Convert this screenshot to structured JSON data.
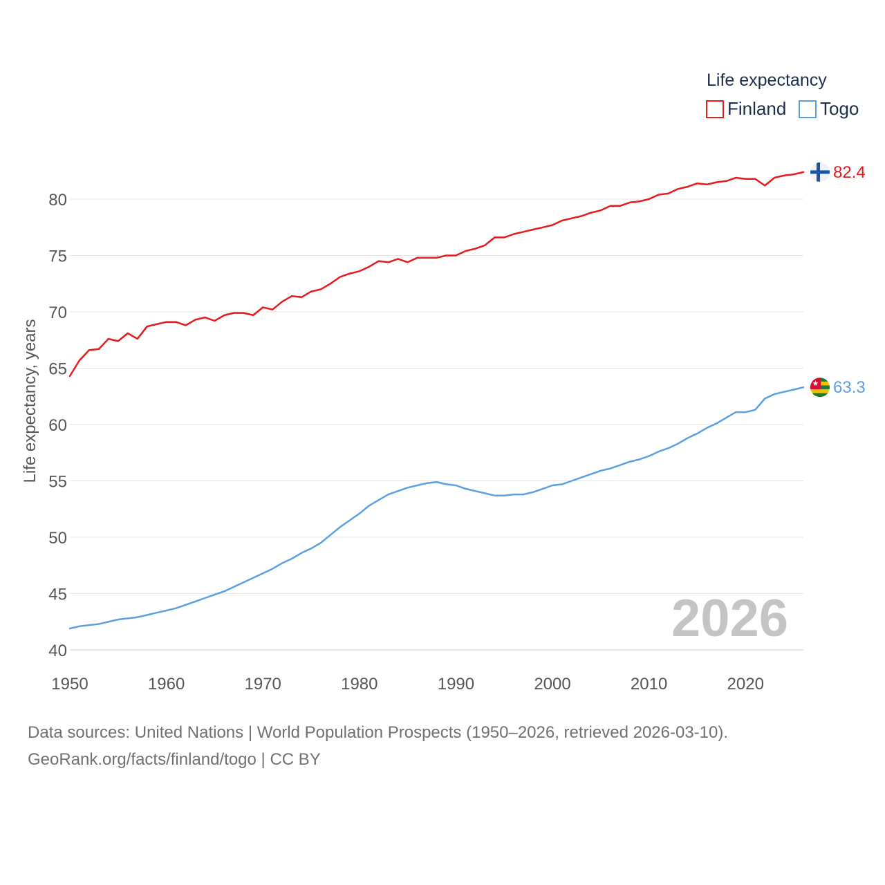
{
  "chart_data": {
    "type": "line",
    "title": "",
    "ylabel": "Life expectancy, years",
    "xlabel": "",
    "xlim": [
      1950,
      2026
    ],
    "ylim": [
      40,
      82.4
    ],
    "xticks": [
      1950,
      1960,
      1970,
      1980,
      1990,
      2000,
      2010,
      2020
    ],
    "xtick_labels": [
      "1950",
      "1960",
      "1970",
      "1980",
      "1990",
      "2000",
      "2010",
      "2020"
    ],
    "yticks": [
      40,
      45,
      50,
      55,
      60,
      65,
      70,
      75,
      80
    ],
    "ytick_labels": [
      "40",
      "45",
      "50",
      "55",
      "60",
      "65",
      "70",
      "75",
      "80"
    ],
    "grid": true,
    "legend": {
      "title": "Life expectancy",
      "position": "top-right",
      "entries": [
        "Finland",
        "Togo"
      ]
    },
    "current_year": "2026",
    "x": [
      1950,
      1951,
      1952,
      1953,
      1954,
      1955,
      1956,
      1957,
      1958,
      1959,
      1960,
      1961,
      1962,
      1963,
      1964,
      1965,
      1966,
      1967,
      1968,
      1969,
      1970,
      1971,
      1972,
      1973,
      1974,
      1975,
      1976,
      1977,
      1978,
      1979,
      1980,
      1981,
      1982,
      1983,
      1984,
      1985,
      1986,
      1987,
      1988,
      1989,
      1990,
      1991,
      1992,
      1993,
      1994,
      1995,
      1996,
      1997,
      1998,
      1999,
      2000,
      2001,
      2002,
      2003,
      2004,
      2005,
      2006,
      2007,
      2008,
      2009,
      2010,
      2011,
      2012,
      2013,
      2014,
      2015,
      2016,
      2017,
      2018,
      2019,
      2020,
      2021,
      2022,
      2023,
      2024,
      2025,
      2026
    ],
    "series": [
      {
        "name": "Finland",
        "color": "#e8191b",
        "end_label": "82.4",
        "flag": "finland-flag",
        "values": [
          64.3,
          65.7,
          66.6,
          66.7,
          67.6,
          67.4,
          68.1,
          67.6,
          68.7,
          68.9,
          69.1,
          69.1,
          68.8,
          69.3,
          69.5,
          69.2,
          69.7,
          69.9,
          69.9,
          69.7,
          70.4,
          70.2,
          70.9,
          71.4,
          71.3,
          71.8,
          72.0,
          72.5,
          73.1,
          73.4,
          73.6,
          74.0,
          74.5,
          74.4,
          74.7,
          74.4,
          74.8,
          74.8,
          74.8,
          75.0,
          75.0,
          75.4,
          75.6,
          75.9,
          76.6,
          76.6,
          76.9,
          77.1,
          77.3,
          77.5,
          77.7,
          78.1,
          78.3,
          78.5,
          78.8,
          79.0,
          79.4,
          79.4,
          79.7,
          79.8,
          80.0,
          80.4,
          80.5,
          80.9,
          81.1,
          81.4,
          81.3,
          81.5,
          81.6,
          81.9,
          81.8,
          81.8,
          81.2,
          81.9,
          82.1,
          82.2,
          82.4
        ]
      },
      {
        "name": "Togo",
        "color": "#5aa0e0",
        "end_label": "63.3",
        "flag": "togo-flag",
        "values": [
          41.9,
          42.1,
          42.2,
          42.3,
          42.5,
          42.7,
          42.8,
          42.9,
          43.1,
          43.3,
          43.5,
          43.7,
          44.0,
          44.3,
          44.6,
          44.9,
          45.2,
          45.6,
          46.0,
          46.4,
          46.8,
          47.2,
          47.7,
          48.1,
          48.6,
          49.0,
          49.5,
          50.2,
          50.9,
          51.5,
          52.1,
          52.8,
          53.3,
          53.8,
          54.1,
          54.4,
          54.6,
          54.8,
          54.9,
          54.7,
          54.6,
          54.3,
          54.1,
          53.9,
          53.7,
          53.7,
          53.8,
          53.8,
          54.0,
          54.3,
          54.6,
          54.7,
          55.0,
          55.3,
          55.6,
          55.9,
          56.1,
          56.4,
          56.7,
          56.9,
          57.2,
          57.6,
          57.9,
          58.3,
          58.8,
          59.2,
          59.7,
          60.1,
          60.6,
          61.1,
          61.1,
          61.3,
          62.3,
          62.7,
          62.9,
          63.1,
          63.3
        ]
      }
    ]
  },
  "footer": {
    "sources_line": "Data sources: United Nations | World Population Prospects (1950–2026, retrieved 2026-03-10).",
    "credit_line": "GeoRank.org/facts/finland/togo | CC BY"
  }
}
